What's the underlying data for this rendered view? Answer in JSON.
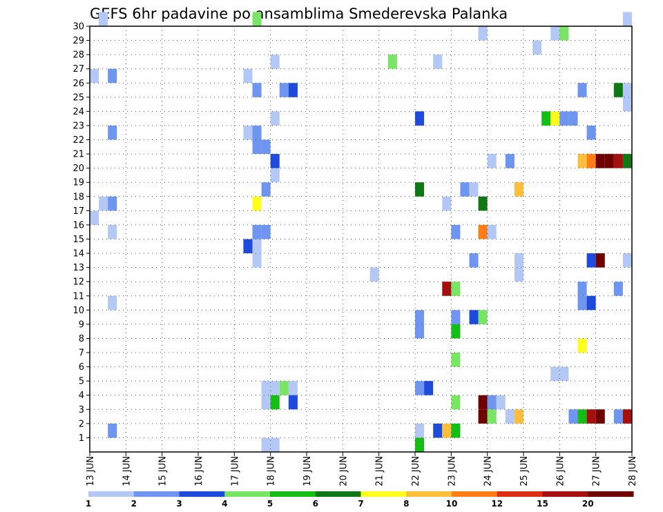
{
  "chart_data": {
    "type": "heatmap",
    "title": "GEFS 6hr padavine po ansamblima Smederevska Palanka",
    "xlabel": "",
    "ylabel": "",
    "x_tick_labels": [
      "13 JUN",
      "14 JUN",
      "15 JUN",
      "16 JUN",
      "17 JUN",
      "18 JUN",
      "19 JUN",
      "20 JUN",
      "21 JUN",
      "22 JUN",
      "23 JUN",
      "24 JUN",
      "25 JUN",
      "26 JUN",
      "27 JUN",
      "28 JUN"
    ],
    "y_tick_labels": [
      "1",
      "2",
      "3",
      "4",
      "5",
      "6",
      "7",
      "8",
      "9",
      "10",
      "11",
      "12",
      "13",
      "14",
      "15",
      "16",
      "17",
      "18",
      "19",
      "20",
      "21",
      "22",
      "23",
      "24",
      "25",
      "26",
      "27",
      "28",
      "29",
      "30"
    ],
    "x_range_days": [
      0,
      15
    ],
    "y_range_members": [
      0,
      30
    ],
    "grid": "dotted",
    "colorbar": {
      "labels": [
        "1",
        "2",
        "3",
        "4",
        "5",
        "6",
        "7",
        "8",
        "10",
        "12",
        "15",
        "20"
      ],
      "colors": [
        "#b4c8f5",
        "#6e96f0",
        "#1e4bdc",
        "#78e664",
        "#14be14",
        "#0f7814",
        "#ffff1e",
        "#ffbe3c",
        "#ff7d14",
        "#dc2d14",
        "#a50f0f",
        "#6e0000"
      ]
    },
    "cells": [
      [
        0.25,
        30,
        0
      ],
      [
        4.5,
        30,
        3
      ],
      [
        14.75,
        30,
        0
      ],
      [
        15,
        30,
        6
      ],
      [
        10.75,
        29,
        0
      ],
      [
        12.75,
        29,
        0
      ],
      [
        13,
        29,
        3
      ],
      [
        12.25,
        28,
        0
      ],
      [
        5,
        27,
        0
      ],
      [
        8.25,
        27,
        3
      ],
      [
        9.5,
        27,
        0
      ],
      [
        0,
        26,
        0
      ],
      [
        0.5,
        26,
        1
      ],
      [
        4.25,
        26,
        0
      ],
      [
        4.5,
        25,
        1
      ],
      [
        5.25,
        25,
        1
      ],
      [
        5.5,
        25,
        2
      ],
      [
        13.5,
        25,
        1
      ],
      [
        14.5,
        25,
        5
      ],
      [
        14.75,
        25,
        0
      ],
      [
        14.75,
        24,
        0
      ],
      [
        5,
        23,
        0
      ],
      [
        9,
        23,
        2
      ],
      [
        12.5,
        23,
        4
      ],
      [
        12.75,
        23,
        6
      ],
      [
        13,
        23,
        1
      ],
      [
        13.25,
        23,
        1
      ],
      [
        0.5,
        22,
        1
      ],
      [
        4.25,
        22,
        0
      ],
      [
        4.5,
        22,
        1
      ],
      [
        13.75,
        22,
        1
      ],
      [
        15,
        22,
        2
      ],
      [
        4.5,
        21,
        1
      ],
      [
        4.75,
        21,
        1
      ],
      [
        5,
        20,
        2
      ],
      [
        11,
        20,
        0
      ],
      [
        11.5,
        20,
        1
      ],
      [
        13.5,
        20,
        7
      ],
      [
        13.75,
        20,
        8
      ],
      [
        14,
        20,
        11
      ],
      [
        14.25,
        20,
        11
      ],
      [
        14.5,
        20,
        10
      ],
      [
        14.75,
        20,
        5
      ],
      [
        5,
        19,
        0
      ],
      [
        4.75,
        18,
        1
      ],
      [
        9,
        18,
        5
      ],
      [
        10.25,
        18,
        1
      ],
      [
        10.5,
        18,
        0
      ],
      [
        11.75,
        18,
        7
      ],
      [
        0.25,
        17,
        0
      ],
      [
        0.5,
        17,
        1
      ],
      [
        4.5,
        17,
        6
      ],
      [
        9.75,
        17,
        0
      ],
      [
        10.75,
        17,
        5
      ],
      [
        0,
        16,
        0
      ],
      [
        0.5,
        15,
        0
      ],
      [
        4.5,
        15,
        1
      ],
      [
        4.75,
        15,
        1
      ],
      [
        10,
        15,
        1
      ],
      [
        10.75,
        15,
        8
      ],
      [
        11,
        15,
        0
      ],
      [
        4.25,
        14,
        2
      ],
      [
        4.5,
        14,
        0
      ],
      [
        4.5,
        13,
        0
      ],
      [
        10.5,
        13,
        1
      ],
      [
        11.75,
        13,
        0
      ],
      [
        13.75,
        13,
        2
      ],
      [
        14,
        13,
        11
      ],
      [
        14.75,
        13,
        0
      ],
      [
        15,
        13,
        4
      ],
      [
        7.75,
        12,
        0
      ],
      [
        11.75,
        12,
        0
      ],
      [
        9.75,
        11,
        10
      ],
      [
        10,
        11,
        3
      ],
      [
        13.5,
        11,
        1
      ],
      [
        14.5,
        11,
        1
      ],
      [
        15,
        11,
        11
      ],
      [
        15.25,
        11,
        5
      ],
      [
        0.5,
        10,
        0
      ],
      [
        13.5,
        10,
        1
      ],
      [
        13.75,
        10,
        2
      ],
      [
        9,
        9,
        1
      ],
      [
        10,
        9,
        1
      ],
      [
        10.5,
        9,
        2
      ],
      [
        10.75,
        9,
        3
      ],
      [
        9,
        8,
        1
      ],
      [
        10,
        8,
        4
      ],
      [
        13.5,
        7,
        6
      ],
      [
        10,
        6,
        3
      ],
      [
        12.75,
        5,
        0
      ],
      [
        13,
        5,
        0
      ],
      [
        4.75,
        4,
        0
      ],
      [
        5,
        4,
        0
      ],
      [
        5.25,
        4,
        3
      ],
      [
        5.5,
        4,
        0
      ],
      [
        9,
        4,
        1
      ],
      [
        9.25,
        4,
        2
      ],
      [
        4.75,
        3,
        0
      ],
      [
        5,
        3,
        4
      ],
      [
        5.5,
        3,
        2
      ],
      [
        10,
        3,
        3
      ],
      [
        10.75,
        3,
        11
      ],
      [
        11,
        3,
        1
      ],
      [
        11.25,
        3,
        0
      ],
      [
        10.75,
        2,
        11
      ],
      [
        11,
        2,
        3
      ],
      [
        11.5,
        2,
        0
      ],
      [
        11.75,
        2,
        7
      ],
      [
        13.25,
        2,
        1
      ],
      [
        13.5,
        2,
        4
      ],
      [
        13.75,
        2,
        10
      ],
      [
        14,
        2,
        11
      ],
      [
        14.5,
        2,
        1
      ],
      [
        14.75,
        2,
        10
      ],
      [
        15,
        2,
        10
      ],
      [
        0.5,
        1,
        1
      ],
      [
        9,
        1,
        0
      ],
      [
        9.5,
        1,
        2
      ],
      [
        9.75,
        1,
        7
      ],
      [
        10,
        1,
        4
      ],
      [
        4.75,
        0,
        0
      ],
      [
        5,
        0,
        0
      ],
      [
        9,
        0,
        4
      ]
    ]
  }
}
